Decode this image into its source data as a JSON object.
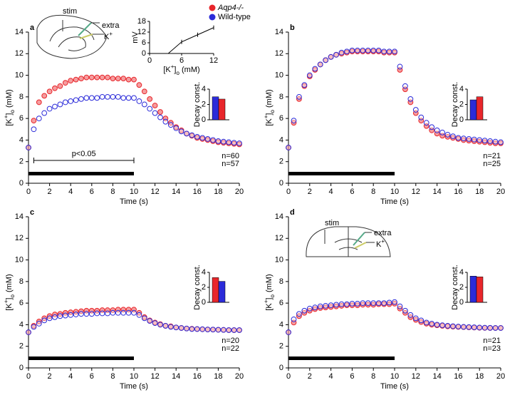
{
  "chart_data": [
    {
      "type": "scatter",
      "label": "a",
      "legend": true,
      "xlabel": "Time (s)",
      "ylabel": [
        "[K",
        "+",
        "]",
        "o",
        " (mM)"
      ],
      "xlim": [
        0,
        20
      ],
      "ylim": [
        0,
        14
      ],
      "xticks": [
        0,
        2,
        4,
        6,
        8,
        10,
        12,
        14,
        16,
        18,
        20
      ],
      "yticks": [
        0,
        2,
        4,
        6,
        8,
        10,
        12,
        14
      ],
      "x": [
        0,
        0.5,
        1,
        1.5,
        2,
        2.5,
        3,
        3.5,
        4,
        4.5,
        5,
        5.5,
        6,
        6.5,
        7,
        7.5,
        8,
        8.5,
        9,
        9.5,
        10,
        10.5,
        11,
        11.5,
        12,
        12.5,
        13,
        13.5,
        14,
        14.5,
        15,
        15.5,
        16,
        16.5,
        17,
        17.5,
        18,
        18.5,
        19,
        19.5,
        20
      ],
      "series": [
        {
          "name": "Aqp4-/-",
          "color": "#e8262b",
          "n": "n=57",
          "values": [
            3.3,
            5.8,
            7.5,
            8.1,
            8.5,
            8.8,
            9.0,
            9.3,
            9.5,
            9.6,
            9.7,
            9.8,
            9.8,
            9.8,
            9.8,
            9.8,
            9.7,
            9.7,
            9.7,
            9.6,
            9.6,
            9.1,
            8.5,
            7.8,
            7.2,
            6.6,
            6.0,
            5.6,
            5.2,
            4.9,
            4.6,
            4.4,
            4.2,
            4.1,
            4.0,
            3.9,
            3.8,
            3.75,
            3.7,
            3.65,
            3.6
          ]
        },
        {
          "name": "Wild-type",
          "color": "#2b2bd9",
          "n": "n=60",
          "values": [
            3.3,
            5.0,
            6.0,
            6.5,
            6.9,
            7.1,
            7.3,
            7.5,
            7.6,
            7.7,
            7.8,
            7.9,
            7.9,
            7.9,
            8.0,
            8.0,
            8.0,
            8.0,
            7.9,
            7.9,
            7.9,
            7.6,
            7.3,
            6.9,
            6.5,
            6.1,
            5.7,
            5.4,
            5.1,
            4.8,
            4.6,
            4.45,
            4.3,
            4.2,
            4.1,
            4.0,
            3.9,
            3.85,
            3.8,
            3.75,
            3.7
          ]
        }
      ],
      "stimulus": [
        0,
        10
      ],
      "bracket": {
        "label": "p<0.05",
        "range": [
          0.5,
          10
        ]
      },
      "diagram_labels": {
        "stim": "stim",
        "extra": "extra",
        "k": [
          "K",
          "+"
        ]
      },
      "insets": [
        {
          "type": "bar",
          "ylabel": "Decay const.",
          "ylim": [
            0,
            4
          ],
          "yticks": [
            0,
            2,
            4
          ],
          "categories": [
            null,
            null
          ],
          "values": [
            3.0,
            2.7
          ],
          "colors": [
            "#2b2bd9",
            "#e8262b"
          ]
        },
        {
          "type": "line",
          "xlabel": [
            "[K",
            "+",
            "]",
            "o",
            " (mM)"
          ],
          "ylabel": "mV",
          "xlim": [
            0,
            12
          ],
          "ylim": [
            0,
            18
          ],
          "xticks": [
            0,
            6,
            12
          ],
          "yticks": [
            0,
            6,
            12,
            18
          ],
          "x": [
            3.5,
            6,
            9,
            12
          ],
          "values": [
            0,
            6.5,
            10.5,
            14.5
          ],
          "color": "#000000"
        }
      ]
    },
    {
      "type": "scatter",
      "label": "b",
      "xlabel": "Time (s)",
      "ylabel": [
        "[K",
        "+",
        "]",
        "o",
        " (mM)"
      ],
      "xlim": [
        0,
        20
      ],
      "ylim": [
        0,
        14
      ],
      "xticks": [
        0,
        2,
        4,
        6,
        8,
        10,
        12,
        14,
        16,
        18,
        20
      ],
      "yticks": [
        0,
        2,
        4,
        6,
        8,
        10,
        12,
        14
      ],
      "x": [
        0,
        0.5,
        1,
        1.5,
        2,
        2.5,
        3,
        3.5,
        4,
        4.5,
        5,
        5.5,
        6,
        6.5,
        7,
        7.5,
        8,
        8.5,
        9,
        9.5,
        10,
        10.5,
        11,
        11.5,
        12,
        12.5,
        13,
        13.5,
        14,
        14.5,
        15,
        15.5,
        16,
        16.5,
        17,
        17.5,
        18,
        18.5,
        19,
        19.5,
        20
      ],
      "series": [
        {
          "name": "Aqp4-/-",
          "color": "#e8262b",
          "n": "n=25",
          "values": [
            3.3,
            5.6,
            7.8,
            9.0,
            9.9,
            10.5,
            11.0,
            11.4,
            11.7,
            11.9,
            12.0,
            12.1,
            12.2,
            12.2,
            12.2,
            12.2,
            12.2,
            12.2,
            12.1,
            12.1,
            12.1,
            10.5,
            8.7,
            7.5,
            6.5,
            5.8,
            5.3,
            4.9,
            4.6,
            4.4,
            4.3,
            4.2,
            4.1,
            4.0,
            3.95,
            3.9,
            3.85,
            3.8,
            3.75,
            3.7,
            3.7
          ]
        },
        {
          "name": "Wild-type",
          "color": "#2b2bd9",
          "n": "n=21",
          "values": [
            3.3,
            5.8,
            8.0,
            9.1,
            10.0,
            10.6,
            11.0,
            11.4,
            11.7,
            11.9,
            12.1,
            12.2,
            12.3,
            12.3,
            12.3,
            12.3,
            12.3,
            12.3,
            12.2,
            12.2,
            12.2,
            10.8,
            9.0,
            7.8,
            6.8,
            6.1,
            5.6,
            5.2,
            4.9,
            4.7,
            4.5,
            4.35,
            4.2,
            4.15,
            4.1,
            4.05,
            4.0,
            3.95,
            3.9,
            3.85,
            3.8
          ]
        }
      ],
      "stimulus": [
        0,
        10
      ],
      "insets": [
        {
          "type": "bar",
          "ylabel": "Decay const.",
          "ylim": [
            0,
            4
          ],
          "yticks": [
            0,
            2,
            4
          ],
          "categories": [
            null,
            null
          ],
          "values": [
            2.6,
            3.0
          ],
          "colors": [
            "#2b2bd9",
            "#e8262b"
          ]
        }
      ]
    },
    {
      "type": "scatter",
      "label": "c",
      "xlabel": "Time (s)",
      "ylabel": [
        "[K",
        "+",
        "]",
        "o",
        " (mM)"
      ],
      "xlim": [
        0,
        20
      ],
      "ylim": [
        0,
        14
      ],
      "xticks": [
        0,
        2,
        4,
        6,
        8,
        10,
        12,
        14,
        16,
        18,
        20
      ],
      "yticks": [
        0,
        2,
        4,
        6,
        8,
        10,
        12,
        14
      ],
      "x": [
        0,
        0.5,
        1,
        1.5,
        2,
        2.5,
        3,
        3.5,
        4,
        4.5,
        5,
        5.5,
        6,
        6.5,
        7,
        7.5,
        8,
        8.5,
        9,
        9.5,
        10,
        10.5,
        11,
        11.5,
        12,
        12.5,
        13,
        13.5,
        14,
        14.5,
        15,
        15.5,
        16,
        16.5,
        17,
        17.5,
        18,
        18.5,
        19,
        19.5,
        20
      ],
      "series": [
        {
          "name": "Aqp4-/-",
          "color": "#e8262b",
          "n": "n=22",
          "values": [
            3.3,
            3.9,
            4.3,
            4.6,
            4.8,
            4.95,
            5.0,
            5.1,
            5.15,
            5.2,
            5.25,
            5.3,
            5.3,
            5.3,
            5.35,
            5.35,
            5.35,
            5.4,
            5.4,
            5.4,
            5.4,
            5.1,
            4.7,
            4.4,
            4.2,
            4.05,
            3.9,
            3.85,
            3.75,
            3.7,
            3.65,
            3.62,
            3.6,
            3.58,
            3.56,
            3.55,
            3.53,
            3.52,
            3.5,
            3.5,
            3.5
          ]
        },
        {
          "name": "Wild-type",
          "color": "#2b2bd9",
          "n": "n=20",
          "values": [
            3.3,
            3.8,
            4.1,
            4.4,
            4.6,
            4.7,
            4.8,
            4.85,
            4.9,
            4.95,
            5.0,
            5.0,
            5.0,
            5.05,
            5.05,
            5.05,
            5.1,
            5.1,
            5.1,
            5.1,
            5.1,
            4.9,
            4.6,
            4.35,
            4.15,
            4.0,
            3.9,
            3.8,
            3.75,
            3.7,
            3.65,
            3.6,
            3.6,
            3.58,
            3.56,
            3.55,
            3.53,
            3.52,
            3.5,
            3.5,
            3.5
          ]
        }
      ],
      "stimulus": [
        0,
        10
      ],
      "insets": [
        {
          "type": "bar",
          "ylabel": "Decay const.",
          "ylim": [
            0,
            4
          ],
          "yticks": [
            0,
            2,
            4
          ],
          "categories": [
            null,
            null
          ],
          "values": [
            3.3,
            2.8
          ],
          "colors": [
            "#e8262b",
            "#2b2bd9"
          ]
        }
      ]
    },
    {
      "type": "scatter",
      "label": "d",
      "xlabel": "Time (s)",
      "ylabel": [
        "[K",
        "+",
        "]",
        "o",
        " (mM)"
      ],
      "xlim": [
        0,
        20
      ],
      "ylim": [
        0,
        14
      ],
      "xticks": [
        0,
        2,
        4,
        6,
        8,
        10,
        12,
        14,
        16,
        18,
        20
      ],
      "yticks": [
        0,
        2,
        4,
        6,
        8,
        10,
        12,
        14
      ],
      "x": [
        0,
        0.5,
        1,
        1.5,
        2,
        2.5,
        3,
        3.5,
        4,
        4.5,
        5,
        5.5,
        6,
        6.5,
        7,
        7.5,
        8,
        8.5,
        9,
        9.5,
        10,
        10.5,
        11,
        11.5,
        12,
        12.5,
        13,
        13.5,
        14,
        14.5,
        15,
        15.5,
        16,
        16.5,
        17,
        17.5,
        18,
        18.5,
        19,
        19.5,
        20
      ],
      "series": [
        {
          "name": "Aqp4-/-",
          "color": "#e8262b",
          "n": "n=23",
          "values": [
            3.3,
            4.2,
            4.8,
            5.1,
            5.3,
            5.45,
            5.55,
            5.6,
            5.65,
            5.7,
            5.75,
            5.8,
            5.8,
            5.8,
            5.85,
            5.85,
            5.85,
            5.9,
            5.9,
            5.9,
            5.95,
            5.5,
            5.1,
            4.7,
            4.45,
            4.25,
            4.1,
            4.0,
            3.95,
            3.9,
            3.85,
            3.82,
            3.8,
            3.78,
            3.76,
            3.74,
            3.72,
            3.71,
            3.7,
            3.7,
            3.7
          ]
        },
        {
          "name": "Wild-type",
          "color": "#2b2bd9",
          "n": "n=21",
          "values": [
            3.3,
            4.5,
            5.0,
            5.3,
            5.5,
            5.6,
            5.7,
            5.75,
            5.8,
            5.85,
            5.9,
            5.9,
            5.95,
            5.95,
            6.0,
            6.0,
            6.0,
            6.0,
            6.0,
            6.05,
            6.1,
            5.7,
            5.3,
            4.9,
            4.6,
            4.4,
            4.2,
            4.1,
            4.0,
            3.95,
            3.9,
            3.86,
            3.83,
            3.8,
            3.78,
            3.76,
            3.74,
            3.72,
            3.71,
            3.7,
            3.7
          ]
        }
      ],
      "stimulus": [
        0,
        10
      ],
      "diagram_labels": {
        "stim": "stim",
        "extra": "extra",
        "k": [
          "K",
          "+"
        ]
      },
      "insets": [
        {
          "type": "bar",
          "ylabel": "Decay const.",
          "ylim": [
            0,
            4
          ],
          "yticks": [
            0,
            2,
            4
          ],
          "categories": [
            null,
            null
          ],
          "values": [
            3.5,
            3.4
          ],
          "colors": [
            "#2b2bd9",
            "#e8262b"
          ]
        }
      ]
    }
  ]
}
